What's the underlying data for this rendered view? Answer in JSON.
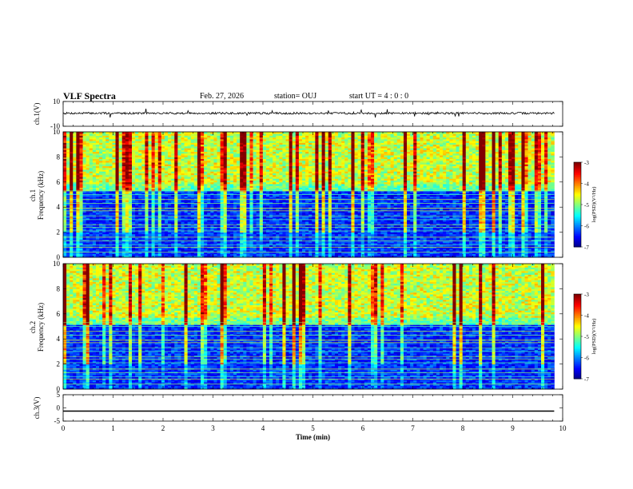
{
  "header": {
    "title": "VLF Spectra",
    "date": "Feb. 27, 2026",
    "station": "station= OUJ",
    "start": "start  UT =   4 : 0  : 0"
  },
  "chart_data": {
    "type": "heatmap",
    "xlabel": "Time (min)",
    "xlim": [
      0,
      10
    ],
    "xticks": [
      "0",
      "1",
      "2",
      "3",
      "4",
      "5",
      "6",
      "7",
      "8",
      "9",
      "10"
    ],
    "data_end_min": 9.83,
    "panels": [
      {
        "id": "ch1-wave",
        "type": "line",
        "ylabel": "ch.1(V)",
        "ylim": [
          -10,
          10
        ],
        "yticks": [
          "10",
          "-10"
        ],
        "baseline_v": 0.5,
        "noise_v": 0.8
      },
      {
        "id": "ch1-spec",
        "type": "heatmap",
        "ylabel": "ch.1\nFrequency (kHz)",
        "ylim": [
          0,
          10
        ],
        "yticks": [
          "0",
          "2",
          "4",
          "6",
          "8",
          "10"
        ],
        "colorbar_label": "log(PSD)(V²/Hz)",
        "cbar_range": [
          -7,
          -3
        ],
        "cbar_ticks": [
          "-3",
          "-4",
          "-5",
          "-6",
          "-7"
        ],
        "band_edge_khz": 5.9,
        "seed": 11
      },
      {
        "id": "ch2-spec",
        "type": "heatmap",
        "ylabel": "ch.2\nFrequency (kHz)",
        "ylim": [
          0,
          10
        ],
        "yticks": [
          "0",
          "2",
          "4",
          "6",
          "8",
          "10"
        ],
        "colorbar_label": "log(PSD)(V²/Hz)",
        "cbar_range": [
          -7,
          -3
        ],
        "cbar_ticks": [
          "-3",
          "-4",
          "-5",
          "-6",
          "-7"
        ],
        "band_edge_khz": 5.7,
        "seed": 29
      },
      {
        "id": "ch3-wave",
        "type": "line",
        "ylabel": "ch.3(V)",
        "ylim": [
          -5,
          5
        ],
        "yticks": [
          "5",
          "0",
          "-5"
        ],
        "baseline_v": -1.2,
        "noise_v": 0.0
      }
    ]
  },
  "colors": {
    "low": "#00007f",
    "mid": "#00ffff",
    "high": "#ff0000"
  }
}
